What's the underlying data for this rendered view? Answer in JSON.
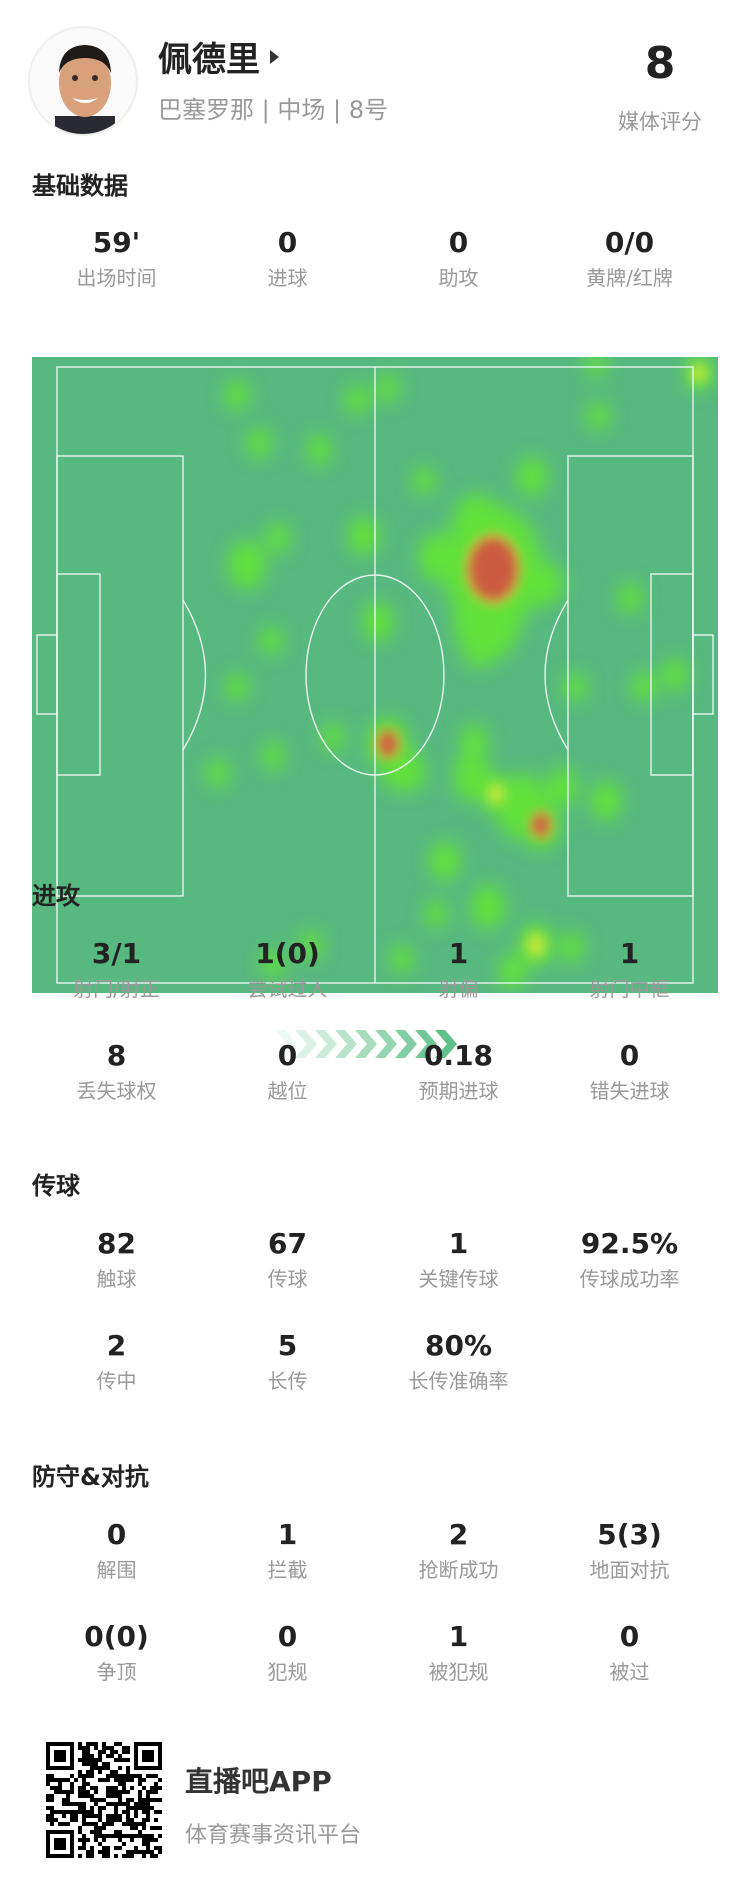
{
  "player": {
    "name": "佩德里",
    "team": "巴塞罗那",
    "position": "中场",
    "number": "8号",
    "rating": "8",
    "rating_label": "媒体评分"
  },
  "sections": {
    "basic": {
      "title": "基础数据",
      "rows": [
        [
          {
            "v": "59'",
            "l": "出场时间"
          },
          {
            "v": "0",
            "l": "进球"
          },
          {
            "v": "0",
            "l": "助攻"
          },
          {
            "v": "0/0",
            "l": "黄牌/红牌"
          }
        ]
      ]
    },
    "attack": {
      "title": "进攻",
      "rows": [
        [
          {
            "v": "3/1",
            "l": "射门/射正"
          },
          {
            "v": "1(0)",
            "l": "尝试过人"
          },
          {
            "v": "1",
            "l": "射偏"
          },
          {
            "v": "1",
            "l": "射门中框"
          }
        ],
        [
          {
            "v": "8",
            "l": "丢失球权"
          },
          {
            "v": "0",
            "l": "越位"
          },
          {
            "v": "0.18",
            "l": "预期进球"
          },
          {
            "v": "0",
            "l": "错失进球"
          }
        ]
      ]
    },
    "passing": {
      "title": "传球",
      "rows": [
        [
          {
            "v": "82",
            "l": "触球"
          },
          {
            "v": "67",
            "l": "传球"
          },
          {
            "v": "1",
            "l": "关键传球"
          },
          {
            "v": "92.5%",
            "l": "传球成功率"
          }
        ],
        [
          {
            "v": "2",
            "l": "传中"
          },
          {
            "v": "5",
            "l": "长传"
          },
          {
            "v": "80%",
            "l": "长传准确率"
          }
        ]
      ]
    },
    "defense": {
      "title": "防守&对抗",
      "rows": [
        [
          {
            "v": "0",
            "l": "解围"
          },
          {
            "v": "1",
            "l": "拦截"
          },
          {
            "v": "2",
            "l": "抢断成功"
          },
          {
            "v": "5(3)",
            "l": "地面对抗"
          }
        ],
        [
          {
            "v": "0(0)",
            "l": "争顶"
          },
          {
            "v": "0",
            "l": "犯规"
          },
          {
            "v": "1",
            "l": "被犯规"
          },
          {
            "v": "0",
            "l": "被过"
          }
        ]
      ]
    }
  },
  "heatmap": {
    "pitch_color": "#57b880",
    "attack_direction": "right"
  },
  "footer": {
    "app_name": "直播吧APP",
    "slogan": "体育赛事资讯平台"
  }
}
